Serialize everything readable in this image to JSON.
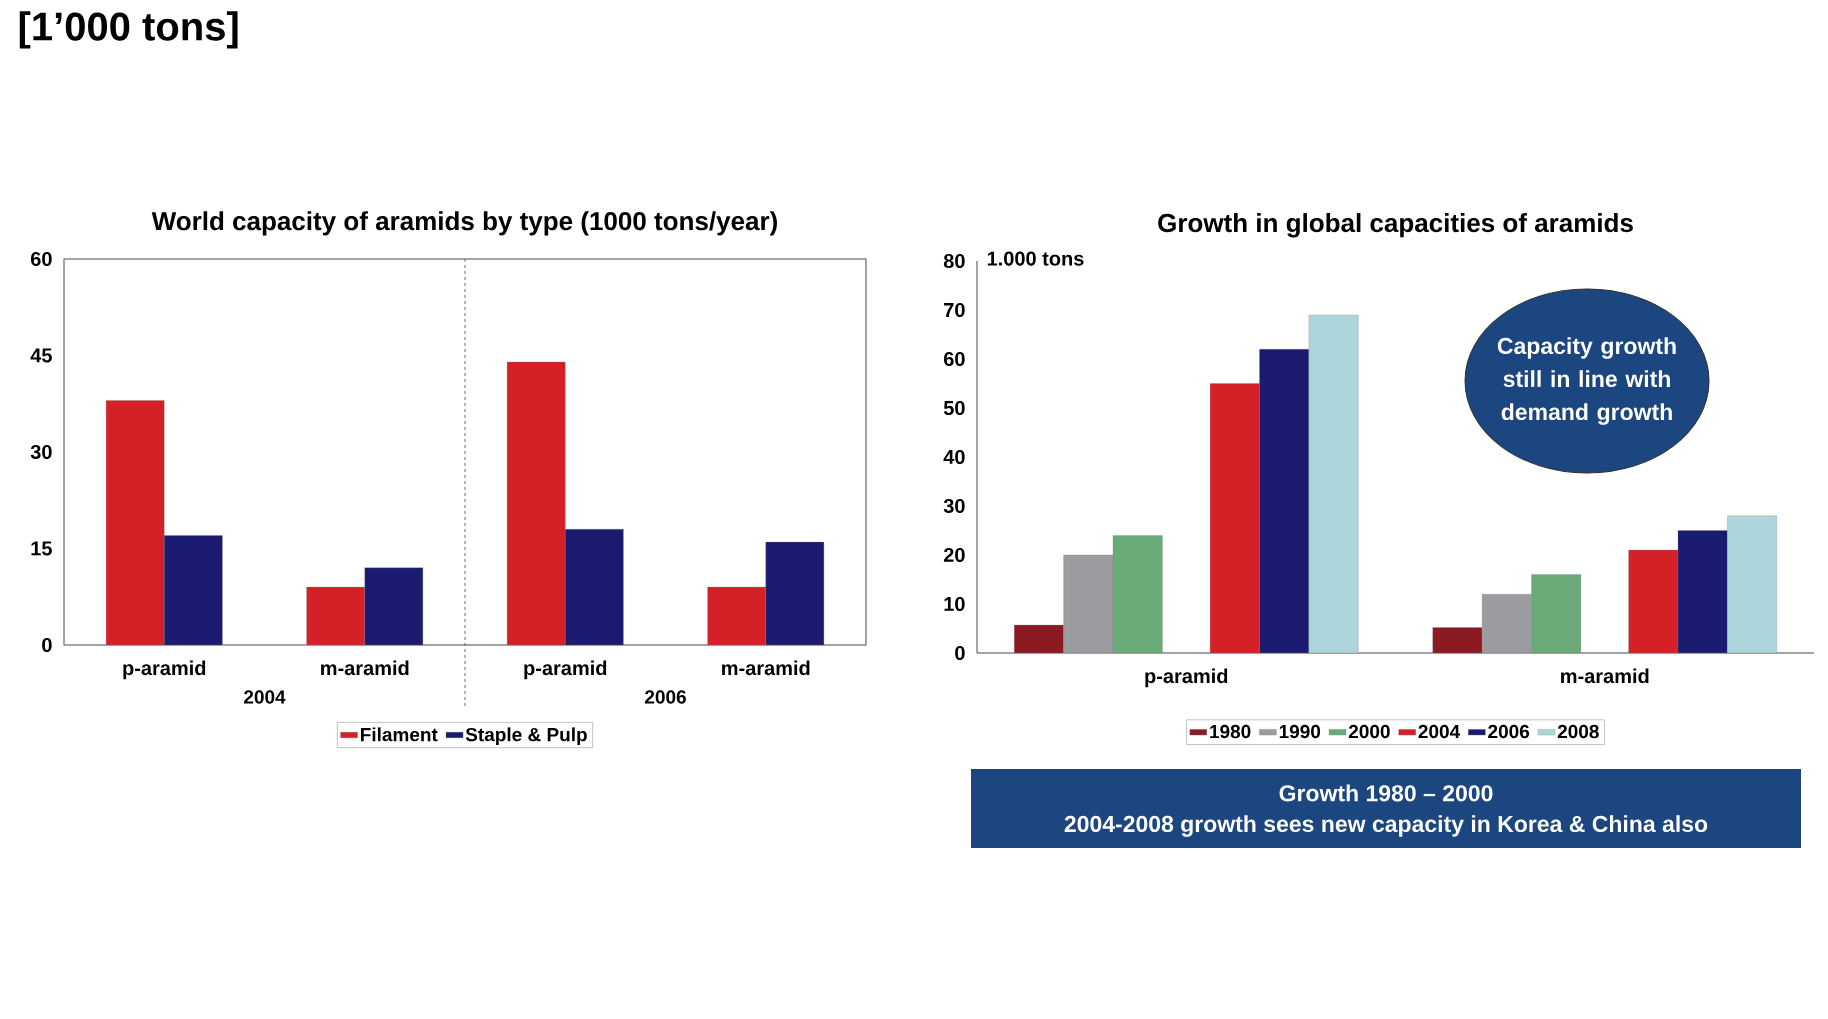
{
  "chart_data": [
    {
      "type": "bar",
      "title": "World capacity of aramids by type (1000 tons/year)",
      "categories": [
        "p-aramid",
        "m-aramid",
        "p-aramid",
        "m-aramid"
      ],
      "series": [
        {
          "name": "Filament",
          "color": "#d42027",
          "values": [
            38,
            9,
            44,
            9
          ]
        },
        {
          "name": "Staple & Pulp",
          "color": "#1a1a6e",
          "values": [
            17,
            12,
            18,
            16
          ]
        }
      ],
      "ylim": [
        0,
        60
      ],
      "yticks": [
        0,
        15,
        30,
        45,
        60
      ],
      "grid": false,
      "legend": "bottom",
      "annotations": [
        "[1’000 tons]",
        "2004",
        "2006"
      ]
    },
    {
      "type": "bar",
      "title": "Growth in global capacities of aramids",
      "ylabel": "1.000 tons",
      "categories": [
        "p-aramid",
        "m-aramid"
      ],
      "series": [
        {
          "name": "1980",
          "color": "#8b1a22",
          "values": [
            5.7,
            5.2
          ]
        },
        {
          "name": "1990",
          "color": "#9a9ca0",
          "values": [
            20,
            12
          ]
        },
        {
          "name": "2000",
          "color": "#6aaa78",
          "values": [
            24,
            16
          ]
        },
        {
          "name": "2004",
          "color": "#d42027",
          "values": [
            55,
            21
          ]
        },
        {
          "name": "2006",
          "color": "#1a1a6e",
          "values": [
            62,
            25
          ]
        },
        {
          "name": "2008",
          "color": "#add6dc",
          "values": [
            69,
            28
          ]
        }
      ],
      "ylim": [
        0,
        80
      ],
      "yticks": [
        0,
        10,
        20,
        30,
        40,
        50,
        60,
        70,
        80
      ],
      "grid": false,
      "legend": "bottom",
      "annotations": [
        "Capacity growth still in line with demand growth",
        "Growth 1980 – 2000",
        "2004-2008 growth sees new capacity in Korea & China also"
      ]
    }
  ]
}
